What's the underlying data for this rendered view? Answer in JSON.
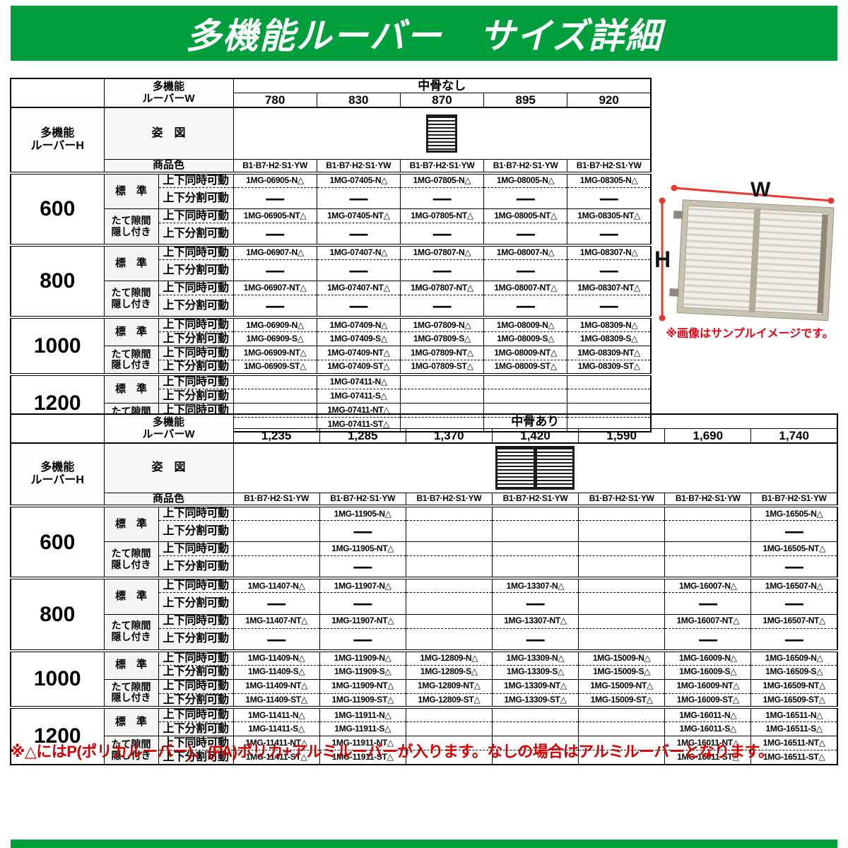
{
  "title": "多機能ルーバー　サイズ詳細",
  "footnote": "※△にはP(ポリカルーバー)、(PA)ポリカ+アルミルーバーが入ります。なしの場合はアルミルーバーとなります。",
  "colors": {
    "header_green": "#009e3c",
    "footnote_red": "#d60000",
    "arrow_red": "#e8392f",
    "caption_red": "#e60012"
  },
  "sample_image": {
    "w_label": "W",
    "h_label": "H",
    "caption": "※画像はサンプルイメージです。"
  },
  "labels": {
    "louver_w_line1": "多機能",
    "louver_w_line2": "ルーバーW",
    "louver_h_line1": "多機能",
    "louver_h_line2": "ルーバーH",
    "figure": "姿　図",
    "product_color": "商品色",
    "standard": "標　準",
    "tate_line1": "たて隙間",
    "tate_line2": "隠し付き",
    "simultaneous": "上下同時可動",
    "split": "上下分割可動",
    "color_value": "B1·B7·H2·S1·YW"
  },
  "tables": [
    {
      "name": "size-table-no-center-rail",
      "span_label": "中骨なし",
      "figure": "single",
      "widths": [
        "780",
        "830",
        "870",
        "895",
        "920"
      ],
      "groups": [
        {
          "height": "600",
          "rows": [
            {
              "move": "simultaneous",
              "cells": [
                "1MG-06905-N△",
                "1MG-07405-N△",
                "1MG-07805-N△",
                "1MG-08005-N△",
                "1MG-08305-N△"
              ]
            },
            {
              "move": "split",
              "cells": [
                "—",
                "—",
                "—",
                "—",
                "—"
              ]
            },
            {
              "move": "simultaneous",
              "cells": [
                "1MG-06905-NT△",
                "1MG-07405-NT△",
                "1MG-07805-NT△",
                "1MG-08005-NT△",
                "1MG-08305-NT△"
              ]
            },
            {
              "move": "split",
              "cells": [
                "—",
                "—",
                "—",
                "—",
                "—"
              ]
            }
          ]
        },
        {
          "height": "800",
          "rows": [
            {
              "move": "simultaneous",
              "cells": [
                "1MG-06907-N△",
                "1MG-07407-N△",
                "1MG-07807-N△",
                "1MG-08007-N△",
                "1MG-08307-N△"
              ]
            },
            {
              "move": "split",
              "cells": [
                "—",
                "—",
                "—",
                "—",
                "—"
              ]
            },
            {
              "move": "simultaneous",
              "cells": [
                "1MG-06907-NT△",
                "1MG-07407-NT△",
                "1MG-07807-NT△",
                "1MG-08007-NT△",
                "1MG-08307-NT△"
              ]
            },
            {
              "move": "split",
              "cells": [
                "—",
                "—",
                "—",
                "—",
                "—"
              ]
            }
          ]
        },
        {
          "height": "1000",
          "rows": [
            {
              "move": "simultaneous",
              "cells": [
                "1MG-06909-N△",
                "1MG-07409-N△",
                "1MG-07809-N△",
                "1MG-08009-N△",
                "1MG-08309-N△"
              ]
            },
            {
              "move": "split",
              "cells": [
                "1MG-06909-S△",
                "1MG-07409-S△",
                "1MG-07809-S△",
                "1MG-08009-S△",
                "1MG-08309-S△"
              ]
            },
            {
              "move": "simultaneous",
              "cells": [
                "1MG-06909-NT△",
                "1MG-07409-NT△",
                "1MG-07809-NT△",
                "1MG-08009-NT△",
                "1MG-08309-NT△"
              ]
            },
            {
              "move": "split",
              "cells": [
                "1MG-06909-ST△",
                "1MG-07409-ST△",
                "1MG-07809-ST△",
                "1MG-08009-ST△",
                "1MG-08309-ST△"
              ]
            }
          ]
        },
        {
          "height": "1200",
          "rows": [
            {
              "move": "simultaneous",
              "cells": [
                "",
                "1MG-07411-N△",
                "",
                "",
                ""
              ]
            },
            {
              "move": "split",
              "cells": [
                "",
                "1MG-07411-S△",
                "",
                "",
                ""
              ]
            },
            {
              "move": "simultaneous",
              "cells": [
                "",
                "1MG-07411-NT△",
                "",
                "",
                ""
              ]
            },
            {
              "move": "split",
              "cells": [
                "",
                "1MG-07411-ST△",
                "",
                "",
                ""
              ]
            }
          ]
        }
      ]
    },
    {
      "name": "size-table-with-center-rail",
      "span_label": "中骨あり",
      "figure": "double",
      "widths": [
        "1,235",
        "1,285",
        "1,370",
        "1,420",
        "1,590",
        "1,690",
        "1,740"
      ],
      "groups": [
        {
          "height": "600",
          "rows": [
            {
              "move": "simultaneous",
              "cells": [
                "",
                "1MG-11905-N△",
                "",
                "",
                "",
                "",
                "1MG-16505-N△"
              ]
            },
            {
              "move": "split",
              "cells": [
                "",
                "—",
                "",
                "",
                "",
                "",
                "—"
              ]
            },
            {
              "move": "simultaneous",
              "cells": [
                "",
                "1MG-11905-NT△",
                "",
                "",
                "",
                "",
                "1MG-16505-NT△"
              ]
            },
            {
              "move": "split",
              "cells": [
                "",
                "—",
                "",
                "",
                "",
                "",
                "—"
              ]
            }
          ]
        },
        {
          "height": "800",
          "rows": [
            {
              "move": "simultaneous",
              "cells": [
                "1MG-11407-N△",
                "1MG-11907-N△",
                "",
                "1MG-13307-N△",
                "",
                "1MG-16007-N△",
                "1MG-16507-N△"
              ]
            },
            {
              "move": "split",
              "cells": [
                "—",
                "—",
                "",
                "—",
                "",
                "—",
                "—"
              ]
            },
            {
              "move": "simultaneous",
              "cells": [
                "1MG-11407-NT△",
                "1MG-11907-NT△",
                "",
                "1MG-13307-NT△",
                "",
                "1MG-16007-NT△",
                "1MG-16507-NT△"
              ]
            },
            {
              "move": "split",
              "cells": [
                "—",
                "—",
                "",
                "—",
                "",
                "—",
                "—"
              ]
            }
          ]
        },
        {
          "height": "1000",
          "rows": [
            {
              "move": "simultaneous",
              "cells": [
                "1MG-11409-N△",
                "1MG-11909-N△",
                "1MG-12809-N△",
                "1MG-13309-N△",
                "1MG-15009-N△",
                "1MG-16009-N△",
                "1MG-16509-N△"
              ]
            },
            {
              "move": "split",
              "cells": [
                "1MG-11409-S△",
                "1MG-11909-S△",
                "1MG-12809-S△",
                "1MG-13309-S△",
                "1MG-15009-S△",
                "1MG-16009-S△",
                "1MG-16509-S△"
              ]
            },
            {
              "move": "simultaneous",
              "cells": [
                "1MG-11409-NT△",
                "1MG-11909-NT△",
                "1MG-12809-NT△",
                "1MG-13309-NT△",
                "1MG-15009-NT△",
                "1MG-16009-NT△",
                "1MG-16509-NT△"
              ]
            },
            {
              "move": "split",
              "cells": [
                "1MG-11409-ST△",
                "1MG-11909-ST△",
                "1MG-12809-ST△",
                "1MG-13309-ST△",
                "1MG-15009-ST△",
                "1MG-16009-ST△",
                "1MG-16509-ST△"
              ]
            }
          ]
        },
        {
          "height": "1200",
          "rows": [
            {
              "move": "simultaneous",
              "cells": [
                "1MG-11411-N△",
                "1MG-11911-N△",
                "",
                "",
                "",
                "1MG-16011-N△",
                "1MG-16511-N△"
              ]
            },
            {
              "move": "split",
              "cells": [
                "1MG-11411-S△",
                "1MG-11911-S△",
                "",
                "",
                "",
                "1MG-16011-S△",
                "1MG-16511-S△"
              ]
            },
            {
              "move": "simultaneous",
              "cells": [
                "1MG-11411-NT△",
                "1MG-11911-NT△",
                "",
                "",
                "",
                "1MG-16011-NT△",
                "1MG-16511-NT△"
              ]
            },
            {
              "move": "split",
              "cells": [
                "1MG-11411-ST△",
                "1MG-11911-ST△",
                "",
                "",
                "",
                "1MG-16011-ST△",
                "1MG-16511-ST△"
              ]
            }
          ]
        }
      ]
    }
  ]
}
